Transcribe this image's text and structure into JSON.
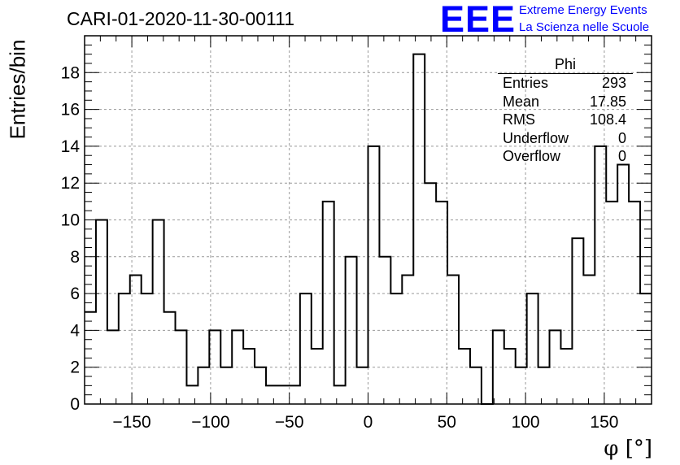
{
  "chart_data": {
    "type": "bar",
    "title": "CARI-01-2020-11-30-00111",
    "xlabel": "φ [°]",
    "ylabel": "Entries/bin",
    "xlim": [
      -180,
      180
    ],
    "ylim": [
      0,
      20
    ],
    "bin_width": 7.2,
    "grid": true,
    "x_ticks": [
      -150,
      -100,
      -50,
      0,
      50,
      100,
      150
    ],
    "y_ticks": [
      0,
      2,
      4,
      6,
      8,
      10,
      12,
      14,
      16,
      18
    ],
    "values": [
      5,
      10,
      4,
      6,
      7,
      6,
      10,
      5,
      4,
      1,
      2,
      4,
      2,
      4,
      3,
      2,
      1,
      1,
      1,
      6,
      3,
      11,
      1,
      8,
      2,
      14,
      8,
      6,
      7,
      19,
      12,
      11,
      7,
      3,
      2,
      0,
      4,
      3,
      2,
      6,
      2,
      4,
      3,
      9,
      7,
      14,
      11,
      13,
      11,
      6
    ],
    "stats": {
      "title": "Phi",
      "rows": [
        {
          "label": "Entries",
          "value": "293"
        },
        {
          "label": "Mean",
          "value": "17.85"
        },
        {
          "label": "RMS",
          "value": "108.4"
        },
        {
          "label": "Underflow",
          "value": "0"
        },
        {
          "label": "Overflow",
          "value": "0"
        }
      ]
    }
  },
  "logo": {
    "mark": "EEE",
    "line1": "Extreme Energy Events",
    "line2": "La Scienza nelle Scuole"
  },
  "colors": {
    "histogram": "#000000",
    "grid": "#999999",
    "logo": "#0000ff"
  }
}
